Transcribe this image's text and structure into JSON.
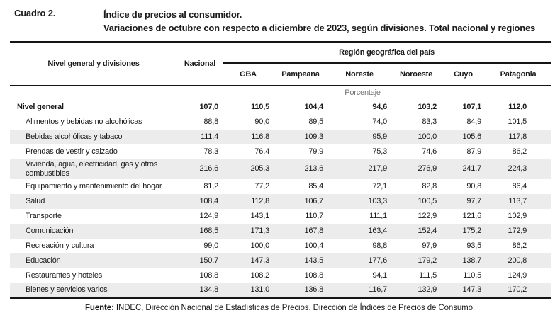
{
  "header": {
    "cuadro_label": "Cuadro 2.",
    "title_line1": "Índice de precios al consumidor.",
    "title_line2": "Variaciones de octubre con respecto a diciembre de 2023, según divisiones. Total nacional y regiones"
  },
  "table": {
    "stub_header": "Nivel general y divisiones",
    "national_header": "Nacional",
    "region_group_header": "Región geográfica del país",
    "region_headers": [
      "GBA",
      "Pampeana",
      "Noreste",
      "Noroeste",
      "Cuyo",
      "Patagonia"
    ],
    "unit_label": "Porcentaje",
    "rows": [
      {
        "label": "Nivel general",
        "bold": true,
        "shaded": false,
        "values": [
          "107,0",
          "110,5",
          "104,4",
          "94,6",
          "103,2",
          "107,1",
          "112,0"
        ]
      },
      {
        "label": "Alimentos y bebidas no alcohólicas",
        "bold": false,
        "shaded": false,
        "values": [
          "88,8",
          "90,0",
          "89,5",
          "74,0",
          "83,3",
          "84,9",
          "101,5"
        ]
      },
      {
        "label": "Bebidas alcohólicas y tabaco",
        "bold": false,
        "shaded": true,
        "values": [
          "111,4",
          "116,8",
          "109,3",
          "95,9",
          "100,0",
          "105,6",
          "117,8"
        ]
      },
      {
        "label": "Prendas de vestir y calzado",
        "bold": false,
        "shaded": false,
        "values": [
          "78,3",
          "76,4",
          "79,9",
          "75,3",
          "74,6",
          "87,9",
          "86,2"
        ]
      },
      {
        "label": "Vivienda, agua, electricidad, gas y otros combustibles",
        "bold": false,
        "shaded": true,
        "values": [
          "216,6",
          "205,3",
          "213,6",
          "217,9",
          "276,9",
          "241,7",
          "224,3"
        ]
      },
      {
        "label": "Equipamiento y mantenimiento del hogar",
        "bold": false,
        "shaded": false,
        "values": [
          "81,2",
          "77,2",
          "85,4",
          "72,1",
          "82,8",
          "90,8",
          "86,4"
        ]
      },
      {
        "label": "Salud",
        "bold": false,
        "shaded": true,
        "values": [
          "108,4",
          "112,8",
          "106,7",
          "103,3",
          "100,5",
          "97,7",
          "113,7"
        ]
      },
      {
        "label": "Transporte",
        "bold": false,
        "shaded": false,
        "values": [
          "124,9",
          "143,1",
          "110,7",
          "111,1",
          "122,9",
          "121,6",
          "102,9"
        ]
      },
      {
        "label": "Comunicación",
        "bold": false,
        "shaded": true,
        "values": [
          "168,5",
          "171,3",
          "167,8",
          "163,4",
          "152,4",
          "175,2",
          "172,9"
        ]
      },
      {
        "label": "Recreación y cultura",
        "bold": false,
        "shaded": false,
        "values": [
          "99,0",
          "100,0",
          "100,4",
          "98,8",
          "97,9",
          "93,5",
          "86,2"
        ]
      },
      {
        "label": "Educación",
        "bold": false,
        "shaded": true,
        "values": [
          "150,7",
          "147,3",
          "143,5",
          "177,6",
          "179,2",
          "138,7",
          "200,8"
        ]
      },
      {
        "label": "Restaurantes y hoteles",
        "bold": false,
        "shaded": false,
        "values": [
          "108,8",
          "108,2",
          "108,8",
          "94,1",
          "111,5",
          "110,5",
          "124,9"
        ]
      },
      {
        "label": "Bienes y servicios varios",
        "bold": false,
        "shaded": true,
        "values": [
          "134,8",
          "131,0",
          "136,8",
          "116,7",
          "132,9",
          "147,3",
          "170,2"
        ]
      }
    ]
  },
  "footer": {
    "source_label": "Fuente:",
    "source_text": " INDEC, Dirección Nacional de Estadísticas de Precios. Dirección de Índices de Precios de Consumo."
  },
  "colors": {
    "text": "#1a1a1a",
    "stripe": "#ececec",
    "muted": "#757575",
    "rule": "#151515"
  }
}
